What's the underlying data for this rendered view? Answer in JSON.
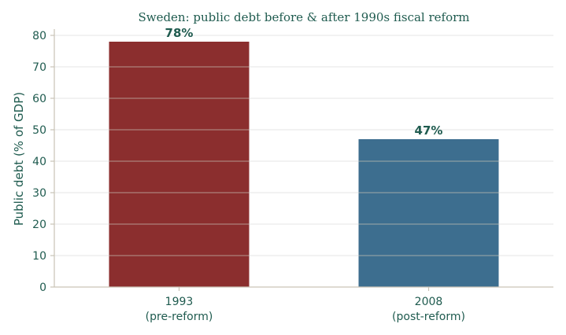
{
  "chart_data": {
    "type": "bar",
    "title": "Sweden: public debt before & after 1990s fiscal reform",
    "ylabel": "Public debt (% of GDP)",
    "xlabel": "",
    "ylim": [
      0,
      80
    ],
    "yticks": [
      "0",
      "10",
      "20",
      "30",
      "40",
      "50",
      "60",
      "70",
      "80"
    ],
    "grid": true,
    "categories": [
      {
        "line1": "1993",
        "line2": "(pre-reform)"
      },
      {
        "line1": "2008",
        "line2": "(post-reform)"
      }
    ],
    "values": [
      78,
      47
    ],
    "value_labels": [
      "78%",
      "47%"
    ],
    "colors": [
      "#8b2e2e",
      "#3d6e8f"
    ]
  }
}
